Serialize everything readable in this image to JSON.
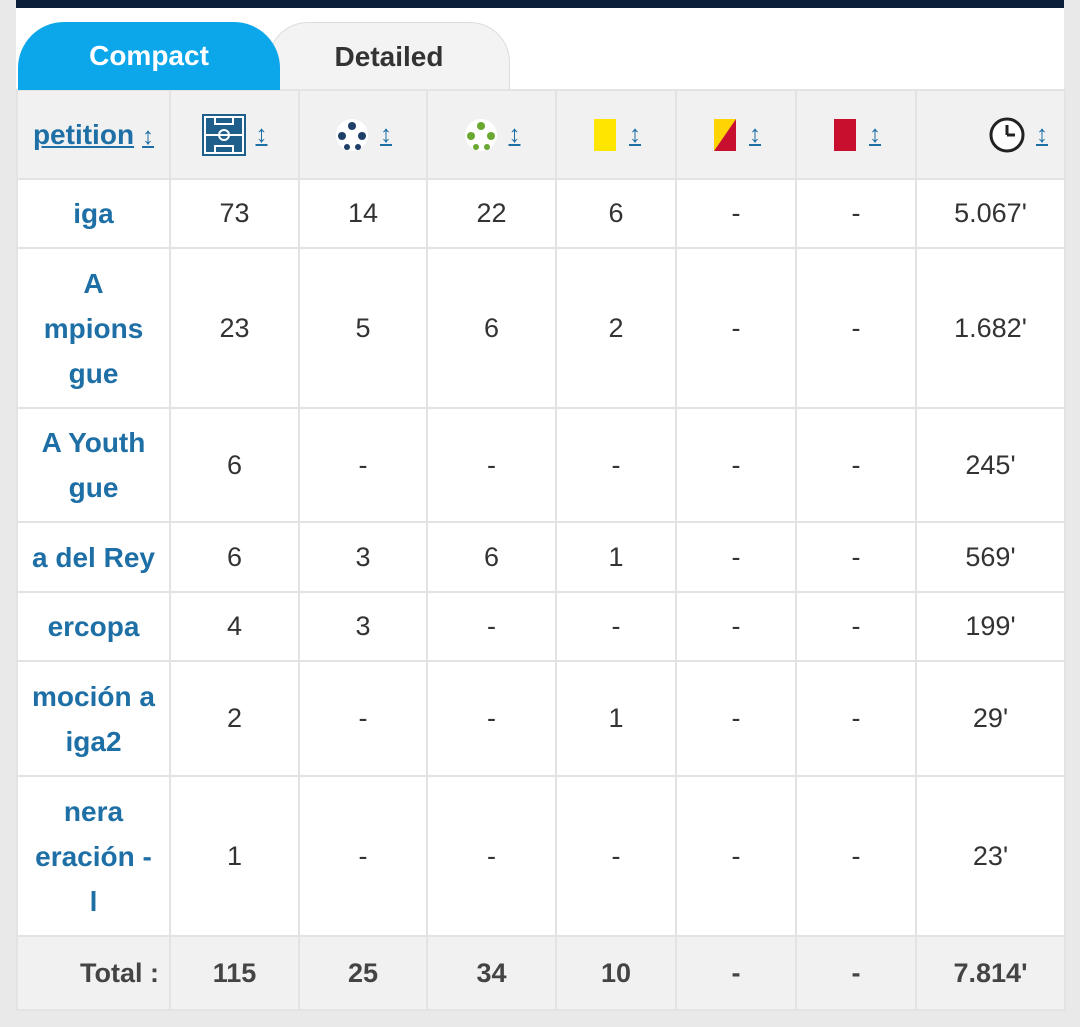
{
  "tabs": {
    "compact": "Compact",
    "detailed": "Detailed"
  },
  "table": {
    "header": {
      "competition": "petition",
      "sort_glyph": "↕",
      "icons": [
        "pitch-icon",
        "goal-ball-icon",
        "assist-ball-icon",
        "yellow-card-icon",
        "yellow-red-card-icon",
        "red-card-icon",
        "clock-icon"
      ]
    },
    "rows": [
      {
        "competition": "iga",
        "apps": "73",
        "goals": "14",
        "assists": "22",
        "yellow": "6",
        "yellowred": "-",
        "red": "-",
        "minutes": "5.067'"
      },
      {
        "competition": "A\nmpions\ngue",
        "apps": "23",
        "goals": "5",
        "assists": "6",
        "yellow": "2",
        "yellowred": "-",
        "red": "-",
        "minutes": "1.682'"
      },
      {
        "competition": "A Youth\ngue",
        "apps": "6",
        "goals": "-",
        "assists": "-",
        "yellow": "-",
        "yellowred": "-",
        "red": "-",
        "minutes": "245'"
      },
      {
        "competition": "a del Rey",
        "apps": "6",
        "goals": "3",
        "assists": "6",
        "yellow": "1",
        "yellowred": "-",
        "red": "-",
        "minutes": "569'"
      },
      {
        "competition": "ercopa",
        "apps": "4",
        "goals": "3",
        "assists": "-",
        "yellow": "-",
        "yellowred": "-",
        "red": "-",
        "minutes": "199'"
      },
      {
        "competition": "moción a\niga2",
        "apps": "2",
        "goals": "-",
        "assists": "-",
        "yellow": "1",
        "yellowred": "-",
        "red": "-",
        "minutes": "29'"
      },
      {
        "competition": "nera\neración -\nl",
        "apps": "1",
        "goals": "-",
        "assists": "-",
        "yellow": "-",
        "yellowred": "-",
        "red": "-",
        "minutes": "23'"
      }
    ],
    "total": {
      "label": "Total :",
      "apps": "115",
      "goals": "25",
      "assists": "34",
      "yellow": "10",
      "yellowred": "-",
      "red": "-",
      "minutes": "7.814'"
    }
  },
  "colors": {
    "accent": "#0ca6ea",
    "link": "#1d6fa5",
    "topbar": "#0b1f3a",
    "yellow_card": "#ffe600",
    "red_card": "#c8102e"
  }
}
